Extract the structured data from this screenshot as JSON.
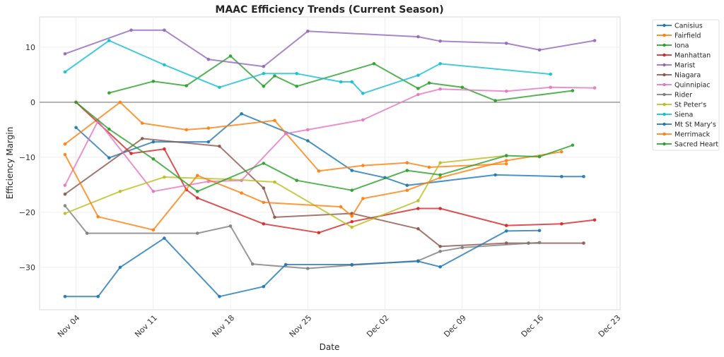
{
  "chart_data": {
    "type": "line",
    "title": "MAAC Efficiency Trends (Current Season)",
    "xlabel": "Date",
    "ylabel": "Efficiency Margin",
    "x_is_date": true,
    "x_reference_date": "Nov 04",
    "x_units": "days since Nov 04",
    "xlim": [
      -3.3,
      49.3
    ],
    "ylim": [
      -37.7,
      15.5
    ],
    "x_ticks": [
      {
        "day": 0,
        "label": "Nov 04"
      },
      {
        "day": 7,
        "label": "Nov 11"
      },
      {
        "day": 14,
        "label": "Nov 18"
      },
      {
        "day": 21,
        "label": "Nov 25"
      },
      {
        "day": 28,
        "label": "Dec 02"
      },
      {
        "day": 35,
        "label": "Dec 09"
      },
      {
        "day": 42,
        "label": "Dec 16"
      },
      {
        "day": 49,
        "label": "Dec 23"
      }
    ],
    "y_ticks": [
      {
        "value": 10,
        "label": "10"
      },
      {
        "value": 0,
        "label": "0"
      },
      {
        "value": -10,
        "label": "−10"
      },
      {
        "value": -20,
        "label": "−20"
      },
      {
        "value": -30,
        "label": "−30"
      }
    ],
    "grid": true,
    "zero_line": true,
    "legend_position": "outside-top-right",
    "series": [
      {
        "name": "Canisius",
        "color": "#1f77b4",
        "x": [
          0,
          3,
          7,
          12,
          15,
          21,
          25,
          28,
          30,
          38,
          44,
          46
        ],
        "y": [
          -4.6,
          -10.1,
          -7.2,
          -7.2,
          -2.1,
          -7.0,
          -12.4,
          -13.7,
          -15.1,
          -13.2,
          -13.5,
          -13.5
        ]
      },
      {
        "name": "Fairfield",
        "color": "#ff7f0e",
        "x": [
          -1,
          4,
          6,
          10,
          12,
          18,
          22,
          26,
          30,
          32,
          39
        ],
        "y": [
          -7.6,
          0.0,
          -3.8,
          -5.0,
          -4.7,
          -3.3,
          -12.5,
          -11.5,
          -11.0,
          -11.8,
          -11.2
        ]
      },
      {
        "name": "Iona",
        "color": "#2ca02c",
        "x": [
          3,
          7,
          10,
          14,
          17,
          18,
          20,
          27,
          31,
          32,
          35,
          38,
          45
        ],
        "y": [
          1.7,
          3.8,
          3.0,
          8.4,
          2.9,
          4.8,
          2.9,
          7.0,
          2.5,
          3.5,
          2.7,
          0.3,
          2.1
        ]
      },
      {
        "name": "Manhattan",
        "color": "#d62728",
        "x": [
          0,
          5,
          8,
          10,
          11,
          17,
          22,
          25,
          31,
          33,
          39,
          44,
          47
        ],
        "y": [
          0.0,
          -9.3,
          -8.5,
          -15.9,
          -17.4,
          -22.1,
          -23.7,
          -21.7,
          -19.3,
          -19.3,
          -22.4,
          -22.1,
          -21.4
        ]
      },
      {
        "name": "Marist",
        "color": "#9467bd",
        "x": [
          -1,
          5,
          8,
          12,
          17,
          21,
          31,
          33,
          39,
          42,
          47
        ],
        "y": [
          8.8,
          13.1,
          13.1,
          7.8,
          6.5,
          12.9,
          11.9,
          11.1,
          10.7,
          9.5,
          11.2
        ]
      },
      {
        "name": "Niagara",
        "color": "#8c564b",
        "x": [
          -1,
          6,
          13,
          17,
          18,
          25,
          31,
          33,
          39,
          41,
          46
        ],
        "y": [
          -16.7,
          -6.6,
          -8.0,
          -15.6,
          -20.9,
          -20.2,
          -23.0,
          -26.2,
          -25.6,
          -25.6,
          -25.6
        ]
      },
      {
        "name": "Quinnipiac",
        "color": "#e377c2",
        "x": [
          -1,
          2,
          7,
          12,
          15,
          19,
          21,
          26,
          31,
          33,
          39,
          43,
          47
        ],
        "y": [
          -15.1,
          -3.4,
          -16.2,
          -14.4,
          -14.2,
          -5.7,
          -5.0,
          -3.2,
          1.4,
          2.4,
          2.0,
          2.7,
          2.6
        ]
      },
      {
        "name": "Rider",
        "color": "#7f7f7f",
        "x": [
          -1,
          1,
          11,
          14,
          16,
          21,
          25,
          31,
          33,
          35,
          42
        ],
        "y": [
          -18.8,
          -23.8,
          -23.8,
          -22.5,
          -29.4,
          -30.2,
          -29.6,
          -28.8,
          -27.1,
          -26.4,
          -25.5
        ]
      },
      {
        "name": "St Peter's",
        "color": "#bcbd22",
        "x": [
          -1,
          4,
          8,
          14,
          18,
          25,
          31,
          33,
          39
        ],
        "y": [
          -20.2,
          -16.2,
          -13.6,
          -14.0,
          -14.5,
          -22.7,
          -17.9,
          -11.0,
          -9.7
        ]
      },
      {
        "name": "Siena",
        "color": "#17becf",
        "x": [
          -1,
          3,
          8,
          13,
          17,
          20,
          24,
          25,
          26,
          31,
          33,
          43
        ],
        "y": [
          5.5,
          11.2,
          6.8,
          2.7,
          5.2,
          5.2,
          3.7,
          3.7,
          1.6,
          4.9,
          7.0,
          5.1
        ]
      },
      {
        "name": "Mt St Mary's",
        "color": "#1f77b4",
        "x": [
          -1,
          2,
          4,
          8,
          13,
          17,
          19,
          25,
          31,
          33,
          39,
          42
        ],
        "y": [
          -35.3,
          -35.3,
          -30.0,
          -24.7,
          -35.3,
          -33.5,
          -29.5,
          -29.5,
          -28.9,
          -29.9,
          -23.4,
          -23.3
        ]
      },
      {
        "name": "Merrimack",
        "color": "#ff7f0e",
        "x": [
          -1,
          2,
          7,
          11,
          15,
          17,
          24,
          25,
          26,
          30,
          33,
          39,
          44
        ],
        "y": [
          -9.5,
          -20.8,
          -23.2,
          -13.3,
          -16.5,
          -18.2,
          -19.0,
          -20.7,
          -17.5,
          -16.0,
          -13.7,
          -10.6,
          -9.0
        ]
      },
      {
        "name": "Sacred Heart",
        "color": "#2ca02c",
        "x": [
          0,
          3,
          7,
          11,
          17,
          20,
          25,
          30,
          33,
          39,
          42,
          45
        ],
        "y": [
          0.0,
          -4.9,
          -10.3,
          -16.2,
          -11.1,
          -14.2,
          -16.0,
          -12.4,
          -13.2,
          -9.7,
          -9.9,
          -7.8
        ]
      }
    ]
  }
}
